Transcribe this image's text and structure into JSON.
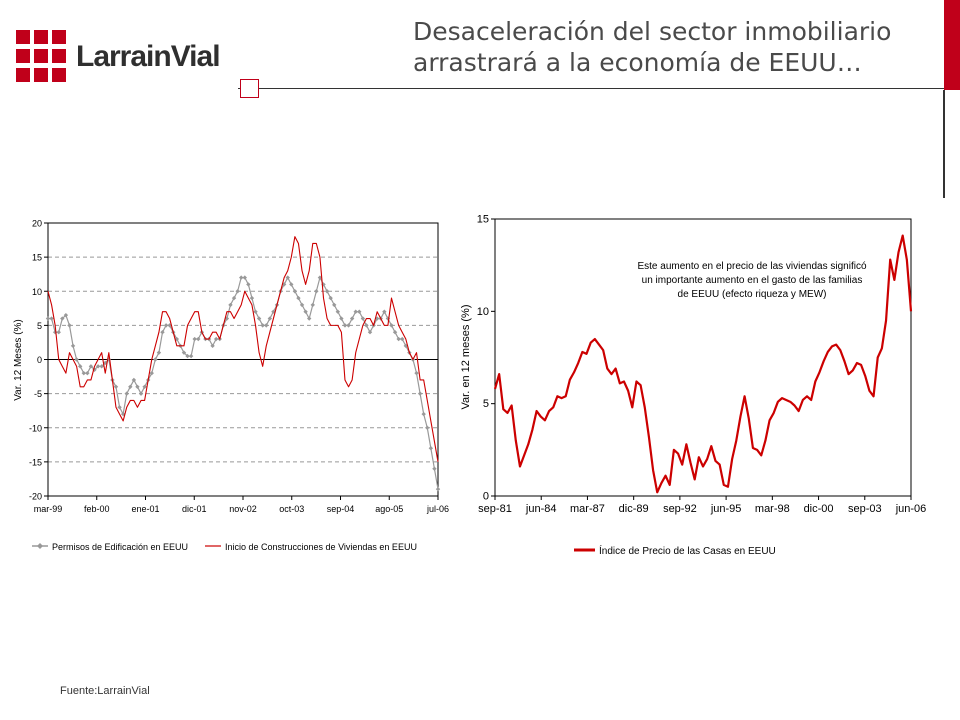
{
  "header": {
    "logo_text": "LarrainVial",
    "title_line1": "Desaceleración del sector inmobiliario",
    "title_line2": "arrastrará a la economía de EEUU…"
  },
  "footer": {
    "source": "Fuente:LarrainVial"
  },
  "colors": {
    "brand_red": "#c0001a",
    "series_gray": "#999999",
    "series_red": "#cc0000",
    "grid": "#999999"
  },
  "chart_data": [
    {
      "type": "line",
      "ylabel": "Var. 12 Meses (%)",
      "ylim": [
        -20,
        20
      ],
      "yticks": [
        20,
        15,
        10,
        5,
        0,
        -5,
        -10,
        -15,
        -20
      ],
      "xtick_labels": [
        "mar-99",
        "feb-00",
        "ene-01",
        "dic-01",
        "nov-02",
        "oct-03",
        "sep-04",
        "ago-05",
        "jul-06"
      ],
      "grid": "horizontal dashed",
      "legend_position": "bottom",
      "series": [
        {
          "name": "Permisos de Edificación en EEUU",
          "color": "#999999",
          "marker": "diamond",
          "values": [
            6,
            6,
            4,
            4,
            6,
            6.5,
            5,
            2,
            0,
            -1,
            -2,
            -2,
            -1,
            -1.5,
            -1,
            -1,
            -0.5,
            0,
            -3,
            -4,
            -7,
            -8,
            -5,
            -4,
            -3,
            -4,
            -5,
            -4,
            -3,
            -2,
            0,
            1,
            4,
            5,
            5,
            4,
            3,
            2,
            1,
            0.5,
            0.5,
            3,
            3,
            4,
            3,
            3,
            2,
            3,
            3,
            5,
            6,
            8,
            9,
            10,
            12,
            12,
            11,
            9,
            7,
            6,
            5,
            5,
            6,
            7,
            8,
            10,
            11,
            12,
            11,
            10,
            9,
            8,
            7,
            6,
            8,
            10,
            12,
            11,
            10,
            9,
            8,
            7,
            6,
            5,
            5,
            6,
            7,
            7,
            6,
            5,
            4,
            5,
            6,
            6,
            7,
            6,
            5,
            4,
            3,
            3,
            2,
            1,
            0,
            -2,
            -5,
            -8,
            -10,
            -13,
            -16,
            -19
          ]
        },
        {
          "name": "Inicio de Construcciones de Viviendas en EEUU",
          "color": "#cc0000",
          "marker": "none",
          "values": [
            10,
            8,
            5,
            0,
            -1,
            -2,
            1,
            0,
            -1,
            -4,
            -4,
            -3,
            -3,
            -1,
            0,
            1,
            -2,
            1,
            -3,
            -7,
            -8,
            -9,
            -7,
            -6,
            -6,
            -7,
            -6,
            -6,
            -3,
            0,
            2,
            4,
            7,
            7,
            6,
            4,
            2,
            2,
            2,
            5,
            6,
            7,
            7,
            4,
            3,
            3,
            4,
            4,
            3,
            5,
            7,
            7,
            6,
            7,
            8,
            10,
            9,
            8,
            5,
            1,
            -1,
            2,
            4,
            6,
            8,
            10,
            12,
            13,
            15,
            18,
            17,
            13,
            11,
            13,
            17,
            17,
            15,
            9,
            6,
            5,
            5,
            5,
            4,
            -3,
            -4,
            -3,
            1,
            3,
            5,
            6,
            6,
            5,
            7,
            6,
            5,
            5,
            9,
            7,
            5,
            4,
            3,
            1,
            0,
            1,
            -3,
            -3,
            -6,
            -9,
            -12,
            -15
          ]
        }
      ]
    },
    {
      "type": "line",
      "ylabel": "Var. en 12 meses (%)",
      "ylim": [
        0,
        15
      ],
      "yticks": [
        15,
        10,
        5,
        0
      ],
      "xtick_labels": [
        "sep-81",
        "jun-84",
        "mar-87",
        "dic-89",
        "sep-92",
        "jun-95",
        "mar-98",
        "dic-00",
        "sep-03",
        "jun-06"
      ],
      "grid": "none",
      "legend_position": "bottom",
      "annotation": {
        "line1": "Este aumento en el precio de las viviendas significó",
        "line2": "un importante aumento en el gasto de las familias",
        "line3": "de EEUU (efecto riqueza y MEW)"
      },
      "series": [
        {
          "name": "Índice de Precio de las Casas en EEUU",
          "color": "#cc0000",
          "values": [
            5.8,
            6.6,
            4.7,
            4.5,
            4.9,
            3,
            1.6,
            2.2,
            2.8,
            3.6,
            4.6,
            4.3,
            4.1,
            4.6,
            4.8,
            5.4,
            5.3,
            5.4,
            6.3,
            6.7,
            7.2,
            7.8,
            7.7,
            8.3,
            8.5,
            8.2,
            7.9,
            6.9,
            6.6,
            6.9,
            6.1,
            6.2,
            5.7,
            4.8,
            6.2,
            6,
            4.8,
            3.2,
            1.4,
            0.2,
            0.7,
            1.1,
            0.6,
            2.5,
            2.3,
            1.7,
            2.8,
            1.8,
            0.9,
            2.1,
            1.6,
            2,
            2.7,
            1.9,
            1.7,
            0.6,
            0.5,
            2,
            3,
            4.3,
            5.4,
            4.2,
            2.6,
            2.5,
            2.2,
            3,
            4.1,
            4.5,
            5.1,
            5.3,
            5.2,
            5.1,
            4.9,
            4.6,
            5.2,
            5.4,
            5.2,
            6.2,
            6.7,
            7.3,
            7.8,
            8.1,
            8.2,
            7.9,
            7.3,
            6.6,
            6.8,
            7.2,
            7.1,
            6.5,
            5.7,
            5.4,
            7.5,
            8,
            9.5,
            12.8,
            11.7,
            13.2,
            14.1,
            12.8,
            10
          ]
        }
      ]
    }
  ]
}
